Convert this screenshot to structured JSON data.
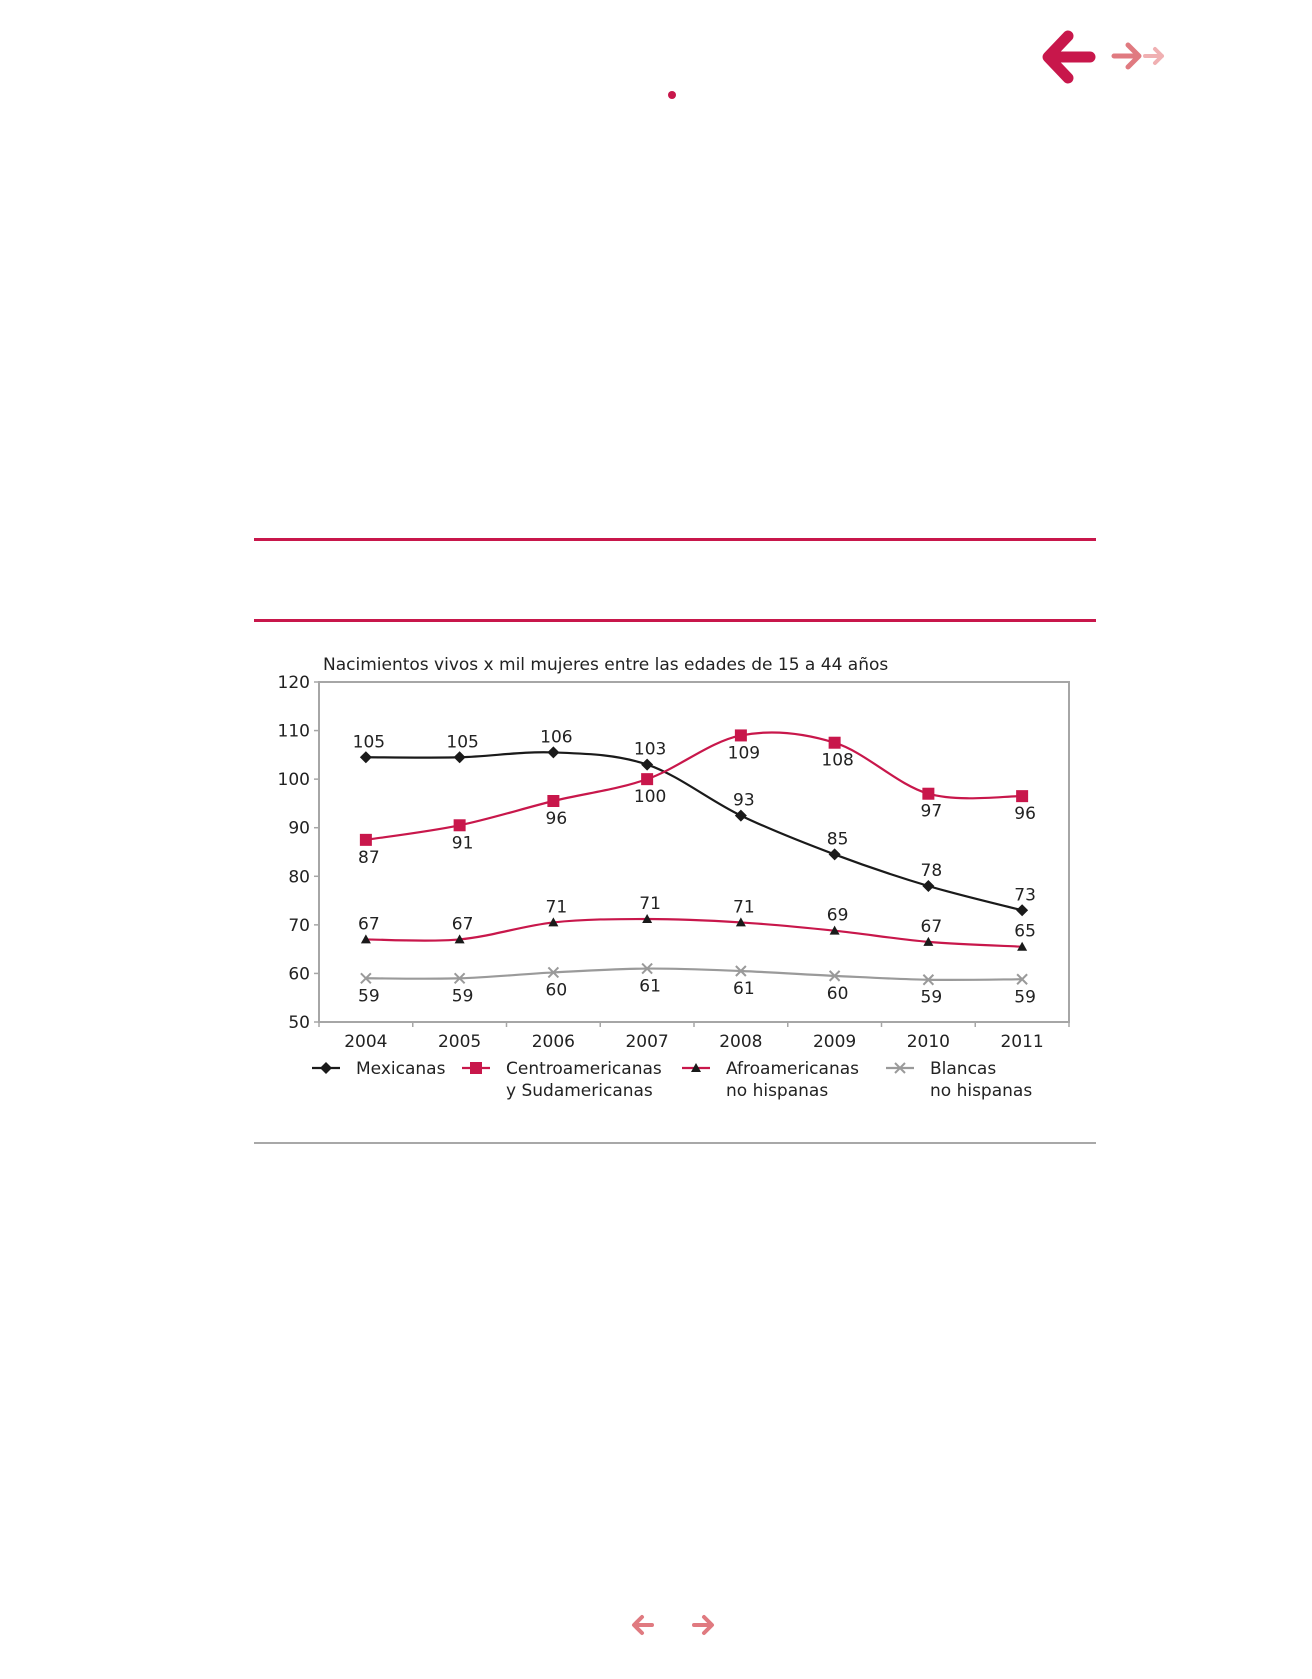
{
  "navigation": {
    "back_icon": "arrow-left-icon",
    "forward_icon": "arrow-right-icon",
    "accent_color": "#c8174b",
    "light_color": "#e07a80"
  },
  "chart_data": {
    "type": "line",
    "title": "Nacimientos vivos x mil mujeres entre las edades de 15 a 44 años",
    "xlabel": "",
    "ylabel": "",
    "categories": [
      "2004",
      "2005",
      "2006",
      "2007",
      "2008",
      "2009",
      "2010",
      "2011"
    ],
    "ylim": [
      50,
      120
    ],
    "yticks": [
      50,
      60,
      70,
      80,
      90,
      100,
      110,
      120
    ],
    "grid": false,
    "legend_position": "bottom",
    "series": [
      {
        "name": "Mexicanas",
        "values": [
          104.5,
          104.5,
          105.5,
          103,
          92.5,
          84.5,
          78,
          73
        ],
        "labels": [
          "105",
          "105",
          "106",
          "103",
          "93",
          "85",
          "78",
          "73"
        ],
        "label_pos": [
          "above",
          "above",
          "above",
          "above",
          "above",
          "above",
          "above",
          "above"
        ],
        "color": "#1a1a1a",
        "marker": "diamond"
      },
      {
        "name": "Centroamericanas y Sudamericanas",
        "values": [
          87.5,
          90.5,
          95.5,
          100,
          109,
          107.5,
          97,
          96.5
        ],
        "labels": [
          "87",
          "91",
          "96",
          "100",
          "109",
          "108",
          "97",
          "96"
        ],
        "label_pos": [
          "below",
          "below",
          "below",
          "below",
          "below",
          "below",
          "below",
          "below"
        ],
        "color": "#c8174b",
        "marker": "square"
      },
      {
        "name": "Afroamericanas no hispanas",
        "values": [
          67,
          67,
          70.5,
          71.2,
          70.5,
          68.8,
          66.5,
          65.5
        ],
        "labels": [
          "67",
          "67",
          "71",
          "71",
          "71",
          "69",
          "67",
          "65"
        ],
        "label_pos": [
          "above",
          "above",
          "above",
          "above",
          "above",
          "above",
          "above",
          "above"
        ],
        "color": "#c8174b",
        "marker": "triangle"
      },
      {
        "name": "Blancas no hispanas",
        "values": [
          59,
          59,
          60.2,
          61,
          60.5,
          59.5,
          58.7,
          58.8
        ],
        "labels": [
          "59",
          "59",
          "60",
          "61",
          "61",
          "60",
          "59",
          "59"
        ],
        "label_pos": [
          "below",
          "below",
          "below",
          "below",
          "below",
          "below",
          "below",
          "below"
        ],
        "color": "#9a9a9a",
        "marker": "x"
      }
    ],
    "legend": [
      {
        "lines": [
          "Mexicanas"
        ]
      },
      {
        "lines": [
          "Centroamericanas",
          "y Sudamericanas"
        ]
      },
      {
        "lines": [
          "Afroamericanas",
          "no hispanas"
        ]
      },
      {
        "lines": [
          "Blancas",
          "no hispanas"
        ]
      }
    ]
  }
}
